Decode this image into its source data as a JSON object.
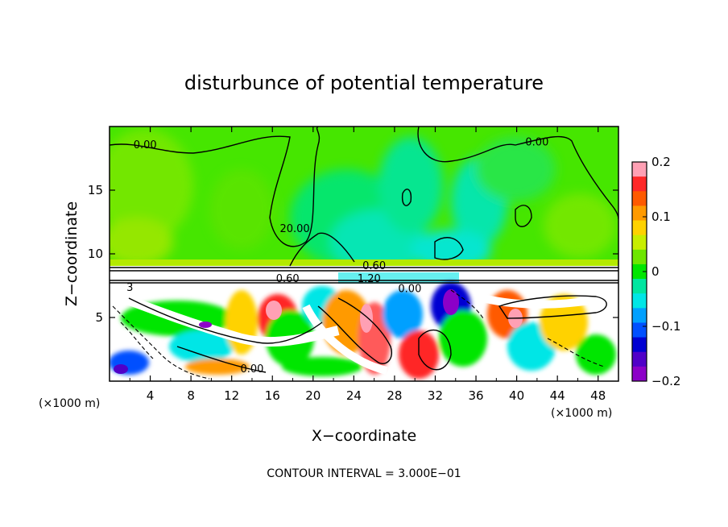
{
  "chart_data": {
    "type": "heatmap",
    "title": "disturbunce of potential temperature",
    "xlabel": "X−coordinate",
    "ylabel": "Z−coordinate",
    "x_unit": "(×1000 m)",
    "x_unit_right": "(×1000 m)",
    "xlim": [
      0,
      50
    ],
    "ylim": [
      0,
      20
    ],
    "x_ticks": [
      4,
      8,
      12,
      16,
      20,
      24,
      28,
      32,
      36,
      40,
      44,
      48
    ],
    "y_ticks": [
      5,
      10,
      15
    ],
    "colorbar": {
      "range": [
        -0.2,
        0.2
      ],
      "ticks": [
        0.2,
        0.1,
        0,
        -0.1,
        -0.2
      ],
      "tick_labels": [
        "0.2",
        "0.1",
        "0",
        "−0.1",
        "−0.2"
      ],
      "colors": [
        "#ffa0b4",
        "#ff2828",
        "#ff5a00",
        "#ff9a00",
        "#ffd200",
        "#c8ee00",
        "#6ee600",
        "#00e600",
        "#00e6a0",
        "#00e6e6",
        "#00a0ff",
        "#0050ff",
        "#0000d2",
        "#5000c8",
        "#8c00c8"
      ]
    },
    "contour_labels": [
      {
        "text": "0.00",
        "x": 3.5,
        "y": 18.3
      },
      {
        "text": "20.00",
        "x": 18.2,
        "y": 11.7
      },
      {
        "text": "0.00",
        "x": 42.0,
        "y": 18.5
      },
      {
        "text": "0.60",
        "x": 26.0,
        "y": 8.8
      },
      {
        "text": "0.60",
        "x": 17.5,
        "y": 7.8
      },
      {
        "text": "1.20",
        "x": 25.5,
        "y": 7.8
      },
      {
        "text": "0.00",
        "x": 29.5,
        "y": 7.0
      },
      {
        "text": "0.00",
        "x": 14.0,
        "y": 0.7
      },
      {
        "text": "3",
        "x": 2.0,
        "y": 7.1
      }
    ],
    "contour_interval_label": "CONTOUR INTERVAL = 3.000E−01"
  }
}
